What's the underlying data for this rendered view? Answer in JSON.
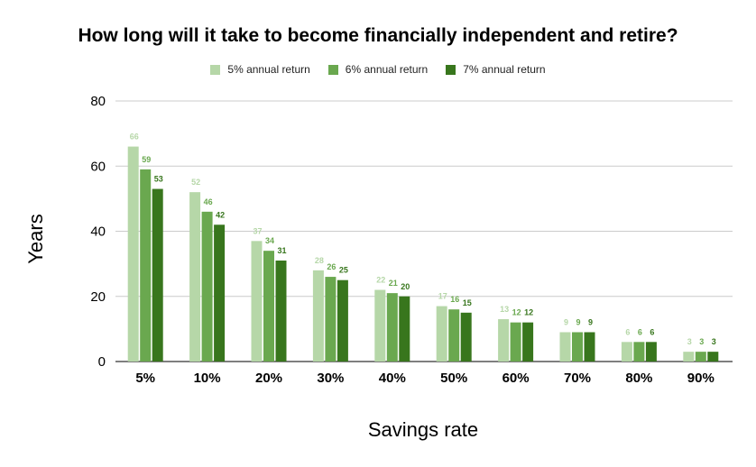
{
  "chart_data": {
    "type": "bar",
    "title": "How long will it take to become financially independent and retire?",
    "xlabel": "Savings rate",
    "ylabel": "Years",
    "categories": [
      "5%",
      "10%",
      "20%",
      "30%",
      "40%",
      "50%",
      "60%",
      "70%",
      "80%",
      "90%"
    ],
    "series": [
      {
        "name": "5% annual return",
        "color": "#b6d7a8",
        "values": [
          66,
          52,
          37,
          28,
          22,
          17,
          13,
          9,
          6,
          3
        ]
      },
      {
        "name": "6% annual return",
        "color": "#6aa84f",
        "values": [
          59,
          46,
          34,
          26,
          21,
          16,
          12,
          9,
          6,
          3
        ]
      },
      {
        "name": "7% annual return",
        "color": "#38761d",
        "values": [
          53,
          42,
          31,
          25,
          20,
          15,
          12,
          9,
          6,
          3
        ]
      }
    ],
    "ylim": [
      0,
      80
    ],
    "yticks": [
      "0",
      "20",
      "40",
      "60",
      "80"
    ],
    "grid": true,
    "legend": "top-center",
    "data_labels": true
  }
}
